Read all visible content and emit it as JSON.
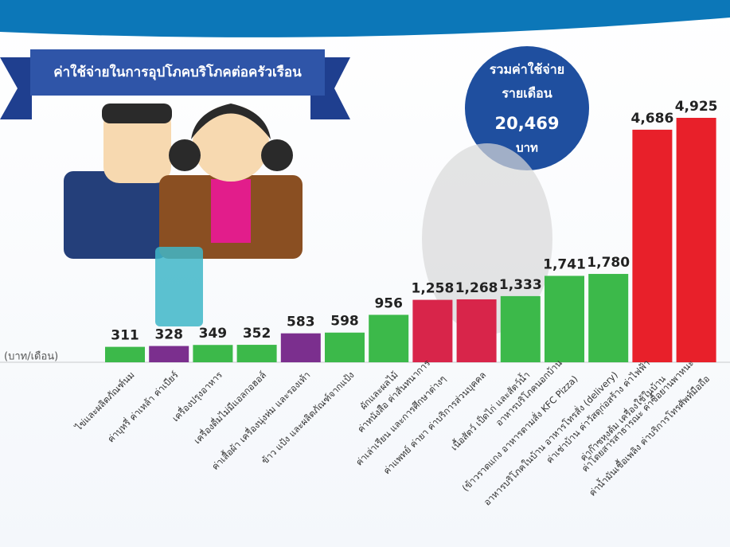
{
  "chart_data": {
    "type": "bar",
    "title": "ค่าใช้จ่ายในการอุปโภคบริโภคต่อครัวเรือน",
    "total_label": [
      "รวมค่าใช้จ่าย",
      "รายเดือน"
    ],
    "total_value": "20,469",
    "total_unit": "บาท",
    "unit_label": "(บาท/เดือน)",
    "categories": [
      [
        "ไข่และผลิตภัณฑ์นม"
      ],
      [
        "ค่าบุหรี่ ค่าเหล้า ค่าเบียร์"
      ],
      [
        "เครื่องปรุงอาหาร"
      ],
      [
        "เครื่องดื่มไม่มีแอลกอฮอล์"
      ],
      [
        "ค่าเสื้อผ้า เครื่องนุ่งห่ม และรองเท้า"
      ],
      [
        "ข้าว แป้ง และผลิตภัณฑ์จากแป้ง"
      ],
      [
        "ผักและผลไม้"
      ],
      [
        "ค่าหนังสือ ค่าสันทนาการ",
        "ค่าเล่าเรียน และการศึกษาต่างๆ"
      ],
      [
        "ค่าแพทย์ ค่ายา ค่าบริการส่วนบุคคล"
      ],
      [
        "เนื้อสัตว์ เป็ดไก่ และสัตว์น้ำ"
      ],
      [
        "อาหารบริโภคนอกบ้าน",
        "(ข้าวราดแกง อาหารตามสั่ง KFC Pizza)"
      ],
      [
        "อาหารบริโภคในบ้าน อาหารโทรสั่ง (delivery)"
      ],
      [
        "ค่าเช่าบ้าน ค่าวัสดุก่อสร้าง ค่าไฟฟ้า",
        "ค่าก๊าซหุงต้ม เครื่องใช้ในบ้าน"
      ],
      [
        "ค่าโดยสารสาธารณะ ค่าซื้อยานพาหนะ",
        "ค่าน้ำมันเชื้อเพลิง ค่าบริการโทรศัพท์มือถือ"
      ]
    ],
    "values": [
      311,
      328,
      349,
      352,
      583,
      598,
      956,
      1258,
      1268,
      1333,
      1741,
      1780,
      4686,
      4925
    ],
    "value_labels": [
      "311",
      "328",
      "349",
      "352",
      "583",
      "598",
      "956",
      "1,258",
      "1,268",
      "1,333",
      "1,741",
      "1,780",
      "4,686",
      "4,925"
    ],
    "colors": [
      "#3cb94a",
      "#7b2f8e",
      "#3cb94a",
      "#3cb94a",
      "#7b2f8e",
      "#3cb94a",
      "#3cb94a",
      "#d8254a",
      "#d8254a",
      "#3cb94a",
      "#3cb94a",
      "#3cb94a",
      "#e8202a",
      "#e8202a"
    ]
  }
}
